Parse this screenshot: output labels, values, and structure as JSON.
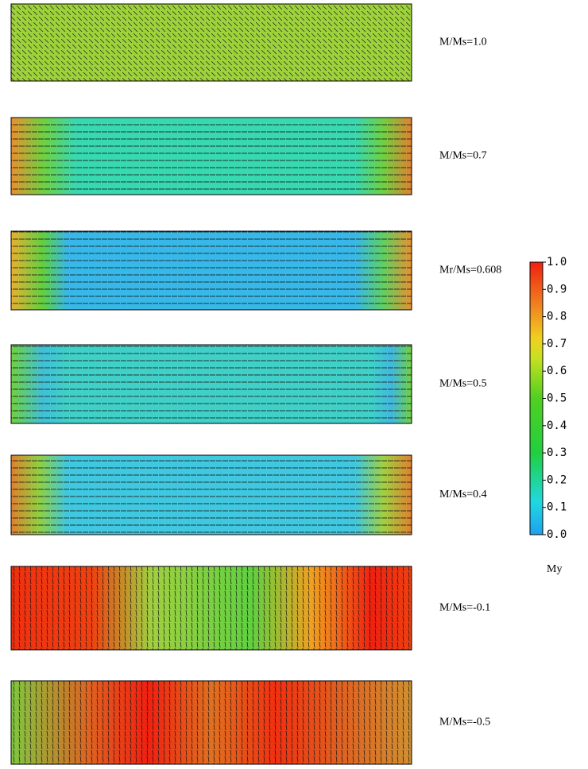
{
  "chart_data": {
    "type": "heatmap",
    "panel_labels": [
      "M/Ms=1.0",
      "M/Ms=0.7",
      "Mr/Ms=0.608",
      "M/Ms=0.5",
      "M/Ms=0.4",
      "M/Ms=-0.1",
      "M/Ms=-0.5"
    ],
    "colorbar_label": "My",
    "ylim": [
      0,
      1
    ],
    "yticks": [
      {
        "value": 0,
        "label": "0.0"
      },
      0.1,
      0.2,
      0.3,
      0.4,
      0.5,
      0.6,
      0.7,
      0.8,
      0.9,
      {
        "value": 1,
        "label": "1.0"
      }
    ]
  }
}
